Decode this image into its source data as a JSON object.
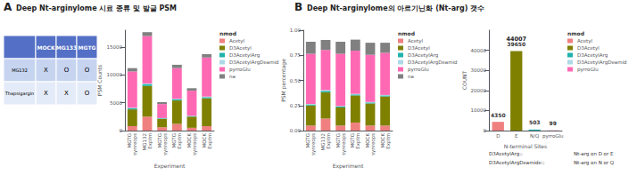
{
  "chart_data": [
    {
      "type": "table",
      "title": "Deep Nt-arginylome 시료 종류 및 발글 PSM",
      "annotations": [
        {
          "text": "A"
        }
      ],
      "columns": [
        null,
        "MOCK",
        "MG133",
        "MGTG"
      ],
      "rows": [
        [
          "MG132",
          "X",
          "O",
          "O"
        ],
        [
          "Thapsigargin",
          "X",
          "X",
          "O"
        ]
      ]
    },
    {
      "type": "bar",
      "stacked": true,
      "categories": [
        "MGTG\nsynreops",
        "MG132\nExptm",
        "MGTG\nsynreops",
        "MGTG\nExptm",
        "MOCK\nsynreops",
        "MOCK\nExptm"
      ],
      "series": [
        {
          "name": "Acetyl",
          "color": "#F08080",
          "values": [
            800,
            2500,
            600,
            1200,
            500,
            800
          ]
        },
        {
          "name": "D3Acetyl",
          "color": "#808000",
          "values": [
            3000,
            5500,
            1500,
            4200,
            2000,
            5000
          ]
        },
        {
          "name": "D3AcetylArg",
          "color": "#20B2AA",
          "values": [
            200,
            300,
            100,
            200,
            100,
            200
          ]
        },
        {
          "name": "D3AcetylArgDeamid",
          "color": "#ADD8E6",
          "values": [
            100,
            150,
            50,
            100,
            50,
            100
          ]
        },
        {
          "name": "pyrroGlu",
          "color": "#FF69B4",
          "values": [
            6500,
            8500,
            2500,
            5500,
            4500,
            7000
          ]
        },
        {
          "name": "na",
          "color": "#808080",
          "values": [
            600,
            700,
            350,
            600,
            450,
            600
          ]
        }
      ],
      "xlabel": "Experiment",
      "ylabel": "PSM Counts",
      "ylim": [
        0,
        18000
      ],
      "yticks": [
        0,
        5000,
        10000,
        15000
      ],
      "grid": false,
      "legend": "upper right",
      "legend_title": "nmod"
    },
    {
      "type": "bar",
      "stacked": true,
      "title": "Deep Nt-arginylome의 아르기닌화 (Nt-arg) 갯수",
      "annotations": [
        {
          "text": "B"
        }
      ],
      "categories": [
        "MGTG\nsynreops",
        "MG132\nExptm",
        "MGTG\nsynreops",
        "MGTG\nExptm",
        "MOCK\nsynreops",
        "MOCK\nExptm"
      ],
      "series": [
        {
          "name": "Acetyl",
          "color": "#F08080",
          "values": [
            0.05,
            0.12,
            0.05,
            0.08,
            0.05,
            0.05
          ]
        },
        {
          "name": "D3Acetyl",
          "color": "#808000",
          "values": [
            0.2,
            0.26,
            0.18,
            0.27,
            0.22,
            0.29
          ]
        },
        {
          "name": "D3AcetylArg",
          "color": "#20B2AA",
          "values": [
            0.01,
            0.015,
            0.01,
            0.01,
            0.01,
            0.01
          ]
        },
        {
          "name": "D3AcetylArgDeamid",
          "color": "#ADD8E6",
          "values": [
            0.005,
            0.008,
            0.005,
            0.006,
            0.005,
            0.005
          ]
        },
        {
          "name": "pyrroGlu",
          "color": "#FF69B4",
          "values": [
            0.5,
            0.4,
            0.52,
            0.43,
            0.47,
            0.42
          ]
        },
        {
          "name": "na",
          "color": "#808080",
          "values": [
            0.12,
            0.1,
            0.12,
            0.11,
            0.12,
            0.1
          ]
        }
      ],
      "xlabel": "Experiment",
      "ylabel": "PSM percentage",
      "ylim": [
        0,
        1.0
      ],
      "yticks": [
        {
          "value": 0,
          "label": "0.00"
        },
        0.25,
        {
          "value": 0.5,
          "label": "0.50"
        },
        0.75,
        {
          "value": 1.0,
          "label": "1.00"
        }
      ],
      "grid": false,
      "legend": "upper right",
      "legend_title": "nmod"
    },
    {
      "type": "bar",
      "categories": [
        "D",
        "E",
        "N/Q",
        "pyrroGlu"
      ],
      "values": [
        4350,
        39650,
        503,
        99
      ],
      "colors": [
        "#F08080",
        "#808000",
        "#20B2AA",
        "#FF69B4"
      ],
      "data_labels": true,
      "xlabel": "N-terminal Sites",
      "ylabel": "COUNT",
      "ylim": [
        0,
        50000
      ],
      "yticks": [
        0,
        10000,
        20000,
        30000,
        40000
      ],
      "grid": false,
      "legend": "upper right",
      "legend_title": "nmod",
      "legend_entries": [
        {
          "name": "Acetyl",
          "color": "#F08080"
        },
        {
          "name": "D3Acetyl",
          "color": "#808000"
        },
        {
          "name": "D3AcetylArg",
          "color": "#20B2AA"
        },
        {
          "name": "D3AcetylArgDeamid",
          "color": "#ADD8E6"
        },
        {
          "name": "pyrroGlu",
          "color": "#FF69B4"
        }
      ],
      "annotations": [
        {
          "text": "44007",
          "x": "E"
        },
        {
          "text": "D3AcetylArg::"
        },
        {
          "text": "D3AcetylArgDeamide::"
        },
        {
          "text": "Nt-arg on D or E"
        },
        {
          "text": "Nt-arg on N or Q"
        }
      ]
    }
  ]
}
